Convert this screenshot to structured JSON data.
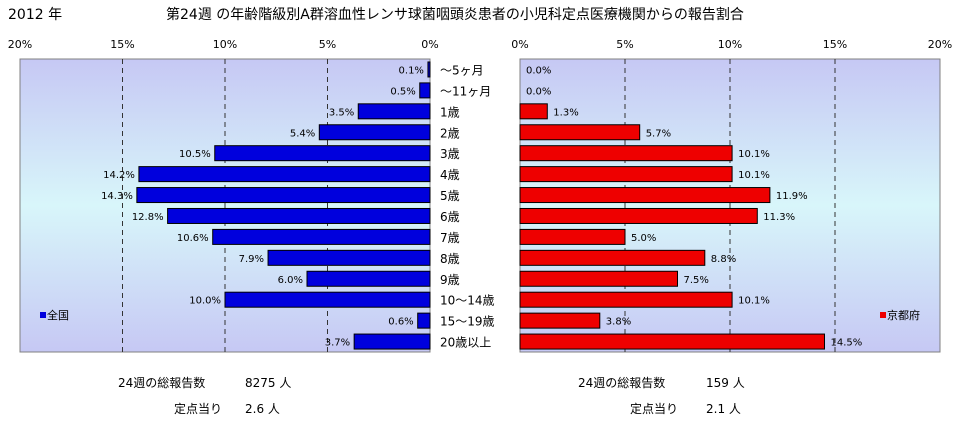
{
  "header": {
    "year": "2012 年",
    "title": "第24週 の年齢階級別A群溶血性レンサ球菌咽頭炎患者の小児科定点医療機関からの報告割合"
  },
  "chart_data": [
    {
      "type": "bar",
      "orientation": "horizontal",
      "direction": "right-to-left",
      "legend": "全国",
      "legend_position": "bottom-left",
      "color": "#0000dd",
      "xlim": [
        0,
        20
      ],
      "xticks": [
        "20%",
        "15%",
        "10%",
        "5%",
        "0%"
      ],
      "grid": true,
      "categories": [
        "～5ヶ月",
        "～11ヶ月",
        "1歳",
        "2歳",
        "3歳",
        "4歳",
        "5歳",
        "6歳",
        "7歳",
        "8歳",
        "9歳",
        "10～14歳",
        "15～19歳",
        "20歳以上"
      ],
      "values": [
        0.1,
        0.5,
        3.5,
        5.4,
        10.5,
        14.2,
        14.3,
        12.8,
        10.6,
        7.9,
        6.0,
        10.0,
        0.6,
        3.7
      ],
      "labels": [
        "0.1%",
        "0.5%",
        "3.5%",
        "5.4%",
        "10.5%",
        "14.2%",
        "14.3%",
        "12.8%",
        "10.6%",
        "7.9%",
        "6.0%",
        "10.0%",
        "0.6%",
        "3.7%"
      ]
    },
    {
      "type": "bar",
      "orientation": "horizontal",
      "direction": "left-to-right",
      "legend": "京都府",
      "legend_position": "bottom-right",
      "color": "#ee0000",
      "xlim": [
        0,
        20
      ],
      "xticks": [
        "0%",
        "5%",
        "10%",
        "15%",
        "20%"
      ],
      "grid": true,
      "categories": [
        "～5ヶ月",
        "～11ヶ月",
        "1歳",
        "2歳",
        "3歳",
        "4歳",
        "5歳",
        "6歳",
        "7歳",
        "8歳",
        "9歳",
        "10～14歳",
        "15～19歳",
        "20歳以上"
      ],
      "values": [
        0.0,
        0.0,
        1.3,
        5.7,
        10.1,
        10.1,
        11.9,
        11.3,
        5.0,
        8.8,
        7.5,
        10.1,
        3.8,
        14.5
      ],
      "labels": [
        "0.0%",
        "0.0%",
        "1.3%",
        "5.7%",
        "10.1%",
        "10.1%",
        "11.9%",
        "11.3%",
        "5.0%",
        "8.8%",
        "7.5%",
        "10.1%",
        "3.8%",
        "14.5%"
      ]
    }
  ],
  "footer": {
    "left": {
      "total_label": "24週の総報告数",
      "total_value": "8275 人",
      "per_label": "定点当り",
      "per_value": "2.6 人"
    },
    "right": {
      "total_label": "24週の総報告数",
      "total_value": "159 人",
      "per_label": "定点当り",
      "per_value": "2.1 人"
    }
  }
}
